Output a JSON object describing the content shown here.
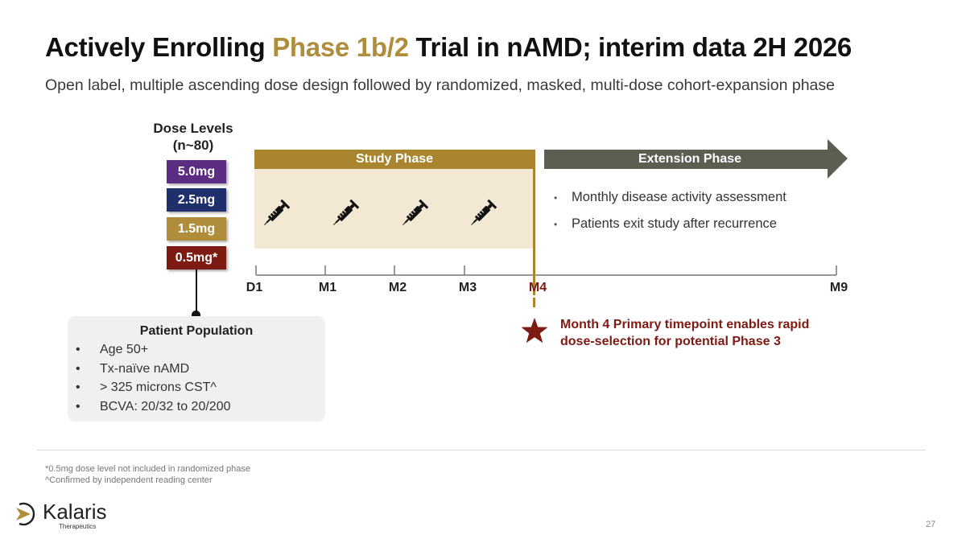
{
  "title": {
    "part1": "Actively Enrolling ",
    "highlight": "Phase 1b/2",
    "part2": " Trial in nAMD; interim data 2H 2026"
  },
  "subtitle": "Open label, multiple ascending dose design followed by randomized, masked, multi-dose cohort-expansion phase",
  "dose_levels": {
    "heading_line1": "Dose Levels",
    "heading_line2": "(n~80)",
    "items": [
      {
        "label": "5.0mg",
        "color": "#5a2d82"
      },
      {
        "label": "2.5mg",
        "color": "#1f2f6b"
      },
      {
        "label": "1.5mg",
        "color": "#b08d3a"
      },
      {
        "label": "0.5mg*",
        "color": "#7d1a12"
      }
    ]
  },
  "study_phase": {
    "label": "Study Phase",
    "color": "#a9852f",
    "fill": "#f2e8d3",
    "syringe_icon": "syringe-icon"
  },
  "extension_phase": {
    "label": "Extension Phase",
    "color": "#5e5d52",
    "bullets": [
      "Monthly disease activity assessment",
      "Patients exit study after recurrence"
    ]
  },
  "timeline": {
    "ticks": [
      "D1",
      "M1",
      "M2",
      "M3",
      "M4",
      "M9"
    ],
    "highlight_tick": "M4",
    "highlight_color": "#7d1a12"
  },
  "m4_callout": {
    "line1": "Month 4 Primary timepoint enables rapid",
    "line2": "dose-selection for potential Phase 3",
    "icon": "star-icon"
  },
  "patient_population": {
    "title": "Patient Population",
    "items": [
      "Age 50+",
      "Tx-naïve nAMD",
      "> 325 microns CST^",
      "BCVA: 20/32 to 20/200"
    ]
  },
  "footnotes": [
    "*0.5mg dose level not included in randomized phase",
    "^Confirmed by independent reading center"
  ],
  "logo": {
    "name": "Kalaris",
    "sub": "Therapeutics"
  },
  "page_number": "27"
}
